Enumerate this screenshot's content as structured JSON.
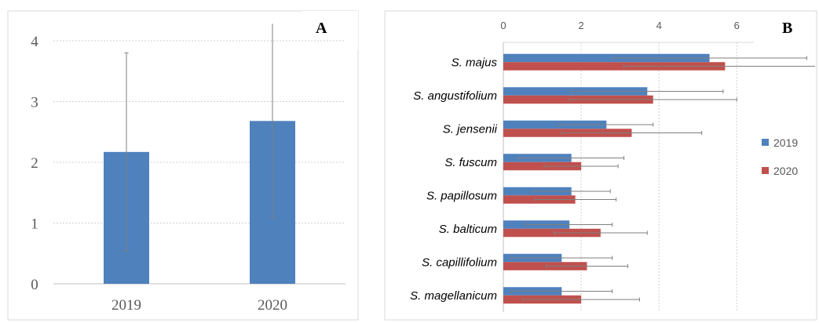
{
  "chart_data": [
    {
      "type": "bar",
      "panel_label": "A",
      "categories": [
        "2019",
        "2020"
      ],
      "values": [
        2.17,
        2.68
      ],
      "error": [
        1.63,
        1.6
      ],
      "y_ticks": [
        "0",
        "1",
        "2",
        "3",
        "4"
      ],
      "ylim": [
        0,
        4
      ],
      "grid": true,
      "bar_color": "#4f81bd"
    },
    {
      "type": "bar",
      "orientation": "horizontal",
      "panel_label": "B",
      "categories": [
        "S. majus",
        "S. angustifolium",
        "S. jensenii",
        "S. fuscum",
        "S. papillosum",
        "S. balticum",
        "S. capillifolium",
        "S. magellanicum"
      ],
      "series": [
        {
          "name": "2019",
          "color": "#4f81bd",
          "values": [
            5.3,
            3.7,
            2.65,
            1.75,
            1.75,
            1.7,
            1.5,
            1.5
          ],
          "error": [
            2.5,
            1.95,
            1.2,
            1.35,
            1.0,
            1.1,
            1.3,
            1.3
          ]
        },
        {
          "name": "2020",
          "color": "#c0504d",
          "values": [
            5.7,
            3.85,
            3.3,
            2.0,
            1.85,
            2.5,
            2.15,
            2.0
          ],
          "error": [
            2.6,
            2.15,
            1.8,
            0.95,
            1.05,
            1.2,
            1.05,
            1.5
          ]
        }
      ],
      "x_ticks": [
        "0",
        "2",
        "4",
        "6"
      ],
      "xlim": [
        0,
        6.6
      ],
      "grid": true,
      "legend": "right"
    }
  ]
}
